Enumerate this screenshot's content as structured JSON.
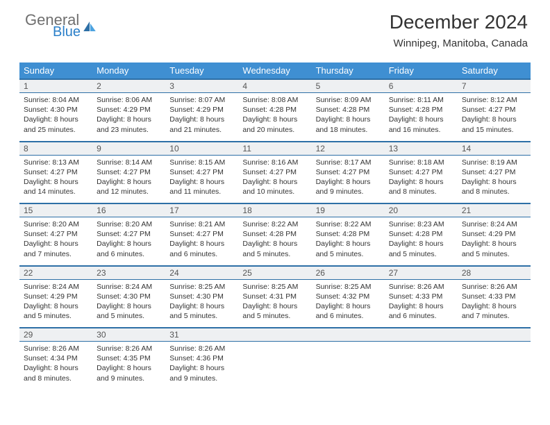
{
  "logo": {
    "text1": "General",
    "text2": "Blue"
  },
  "header": {
    "title": "December 2024",
    "location": "Winnipeg, Manitoba, Canada"
  },
  "columns": [
    "Sunday",
    "Monday",
    "Tuesday",
    "Wednesday",
    "Thursday",
    "Friday",
    "Saturday"
  ],
  "colors": {
    "header_bg": "#3f8fd2",
    "header_text": "#ffffff",
    "daynum_bg": "#eef0f2",
    "border": "#2d6fa6",
    "logo_gray": "#6f6f6f",
    "logo_blue": "#2a7fc9",
    "sail_dark": "#2d6fa6",
    "sail_light": "#4da3e0"
  },
  "weeks": [
    [
      {
        "n": "1",
        "sr": "8:04 AM",
        "ss": "4:30 PM",
        "dl": "8 hours and 25 minutes."
      },
      {
        "n": "2",
        "sr": "8:06 AM",
        "ss": "4:29 PM",
        "dl": "8 hours and 23 minutes."
      },
      {
        "n": "3",
        "sr": "8:07 AM",
        "ss": "4:29 PM",
        "dl": "8 hours and 21 minutes."
      },
      {
        "n": "4",
        "sr": "8:08 AM",
        "ss": "4:28 PM",
        "dl": "8 hours and 20 minutes."
      },
      {
        "n": "5",
        "sr": "8:09 AM",
        "ss": "4:28 PM",
        "dl": "8 hours and 18 minutes."
      },
      {
        "n": "6",
        "sr": "8:11 AM",
        "ss": "4:28 PM",
        "dl": "8 hours and 16 minutes."
      },
      {
        "n": "7",
        "sr": "8:12 AM",
        "ss": "4:27 PM",
        "dl": "8 hours and 15 minutes."
      }
    ],
    [
      {
        "n": "8",
        "sr": "8:13 AM",
        "ss": "4:27 PM",
        "dl": "8 hours and 14 minutes."
      },
      {
        "n": "9",
        "sr": "8:14 AM",
        "ss": "4:27 PM",
        "dl": "8 hours and 12 minutes."
      },
      {
        "n": "10",
        "sr": "8:15 AM",
        "ss": "4:27 PM",
        "dl": "8 hours and 11 minutes."
      },
      {
        "n": "11",
        "sr": "8:16 AM",
        "ss": "4:27 PM",
        "dl": "8 hours and 10 minutes."
      },
      {
        "n": "12",
        "sr": "8:17 AM",
        "ss": "4:27 PM",
        "dl": "8 hours and 9 minutes."
      },
      {
        "n": "13",
        "sr": "8:18 AM",
        "ss": "4:27 PM",
        "dl": "8 hours and 8 minutes."
      },
      {
        "n": "14",
        "sr": "8:19 AM",
        "ss": "4:27 PM",
        "dl": "8 hours and 8 minutes."
      }
    ],
    [
      {
        "n": "15",
        "sr": "8:20 AM",
        "ss": "4:27 PM",
        "dl": "8 hours and 7 minutes."
      },
      {
        "n": "16",
        "sr": "8:20 AM",
        "ss": "4:27 PM",
        "dl": "8 hours and 6 minutes."
      },
      {
        "n": "17",
        "sr": "8:21 AM",
        "ss": "4:27 PM",
        "dl": "8 hours and 6 minutes."
      },
      {
        "n": "18",
        "sr": "8:22 AM",
        "ss": "4:28 PM",
        "dl": "8 hours and 5 minutes."
      },
      {
        "n": "19",
        "sr": "8:22 AM",
        "ss": "4:28 PM",
        "dl": "8 hours and 5 minutes."
      },
      {
        "n": "20",
        "sr": "8:23 AM",
        "ss": "4:28 PM",
        "dl": "8 hours and 5 minutes."
      },
      {
        "n": "21",
        "sr": "8:24 AM",
        "ss": "4:29 PM",
        "dl": "8 hours and 5 minutes."
      }
    ],
    [
      {
        "n": "22",
        "sr": "8:24 AM",
        "ss": "4:29 PM",
        "dl": "8 hours and 5 minutes."
      },
      {
        "n": "23",
        "sr": "8:24 AM",
        "ss": "4:30 PM",
        "dl": "8 hours and 5 minutes."
      },
      {
        "n": "24",
        "sr": "8:25 AM",
        "ss": "4:30 PM",
        "dl": "8 hours and 5 minutes."
      },
      {
        "n": "25",
        "sr": "8:25 AM",
        "ss": "4:31 PM",
        "dl": "8 hours and 5 minutes."
      },
      {
        "n": "26",
        "sr": "8:25 AM",
        "ss": "4:32 PM",
        "dl": "8 hours and 6 minutes."
      },
      {
        "n": "27",
        "sr": "8:26 AM",
        "ss": "4:33 PM",
        "dl": "8 hours and 6 minutes."
      },
      {
        "n": "28",
        "sr": "8:26 AM",
        "ss": "4:33 PM",
        "dl": "8 hours and 7 minutes."
      }
    ],
    [
      {
        "n": "29",
        "sr": "8:26 AM",
        "ss": "4:34 PM",
        "dl": "8 hours and 8 minutes."
      },
      {
        "n": "30",
        "sr": "8:26 AM",
        "ss": "4:35 PM",
        "dl": "8 hours and 9 minutes."
      },
      {
        "n": "31",
        "sr": "8:26 AM",
        "ss": "4:36 PM",
        "dl": "8 hours and 9 minutes."
      },
      null,
      null,
      null,
      null
    ]
  ],
  "labels": {
    "sunrise": "Sunrise: ",
    "sunset": "Sunset: ",
    "daylight": "Daylight: "
  }
}
